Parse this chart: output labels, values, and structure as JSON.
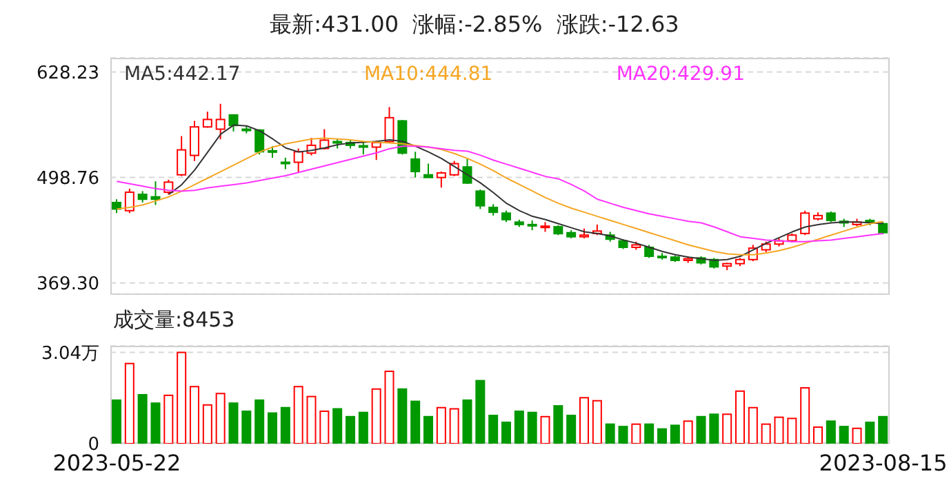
{
  "chart_data": [
    {
      "type": "candlestick",
      "title": "最新:431.00  涨幅:-2.85%  涨跌:-12.63",
      "categories": [
        null,
        null,
        null,
        null,
        null,
        null,
        null,
        null,
        null,
        null,
        null,
        null,
        null,
        null,
        null,
        null,
        null,
        null,
        null,
        null,
        null,
        null,
        null,
        null,
        null,
        null,
        null,
        null,
        null,
        null,
        null,
        null,
        null,
        null,
        null,
        null,
        null,
        null,
        null,
        null,
        null,
        null,
        null,
        null,
        null,
        null,
        null,
        null,
        null,
        null,
        null,
        null,
        null,
        null,
        null,
        null,
        null,
        null,
        null,
        null
      ],
      "ohlc": [
        [
          468,
          472,
          455,
          460
        ],
        [
          458,
          485,
          455,
          480.6
        ],
        [
          478,
          482,
          468,
          472
        ],
        [
          475,
          494,
          465,
          472
        ],
        [
          480.6,
          496,
          477.8,
          493
        ],
        [
          502,
          549.5,
          500.4,
          532.6
        ],
        [
          525.8,
          568.2,
          519,
          560.8
        ],
        [
          560.8,
          579.5,
          559.7,
          569.9
        ],
        [
          558,
          589.1,
          545.6,
          569.9
        ],
        [
          575.5,
          576,
          555.2,
          562.5
        ],
        [
          558,
          562.5,
          552.9,
          556.3
        ],
        [
          556.9,
          558,
          526.9,
          530.3
        ],
        [
          531.5,
          537.1,
          523,
          529.8
        ],
        [
          517.4,
          523,
          508.9,
          516.2
        ],
        [
          517.4,
          534.3,
          504.3,
          530.3
        ],
        [
          528.6,
          547.3,
          525.8,
          538.2
        ],
        [
          534.3,
          558,
          533.2,
          544.5
        ],
        [
          542.8,
          545.6,
          534.3,
          541.1
        ],
        [
          541.6,
          545.6,
          534.3,
          538.2
        ],
        [
          537.7,
          541.6,
          526.9,
          536
        ],
        [
          536,
          543.9,
          520.2,
          541.6
        ],
        [
          542.8,
          585.1,
          541.6,
          572.1
        ],
        [
          568.2,
          569.3,
          526.9,
          528.6
        ],
        [
          521.3,
          530.3,
          498.7,
          506
        ],
        [
          502,
          515.7,
          498.7,
          498.7
        ],
        [
          498.7,
          506,
          486.3,
          504.3
        ],
        [
          502,
          519,
          500.4,
          515.7
        ],
        [
          511.7,
          521.3,
          490.8,
          491.9
        ],
        [
          482,
          484,
          460,
          464
        ],
        [
          462,
          466,
          452,
          456
        ],
        [
          455,
          458,
          444,
          447
        ],
        [
          444,
          447,
          438,
          441
        ],
        [
          441,
          446,
          434,
          440
        ],
        [
          438,
          444,
          432,
          439
        ],
        [
          438.3,
          440,
          428,
          429.8
        ],
        [
          431,
          434,
          424,
          426
        ],
        [
          426,
          436,
          424,
          428
        ],
        [
          430,
          441,
          428,
          433
        ],
        [
          428,
          432,
          420,
          423
        ],
        [
          421,
          423,
          411,
          413
        ],
        [
          413,
          420,
          410,
          416
        ],
        [
          413,
          416,
          400,
          402
        ],
        [
          402,
          406,
          398,
          401
        ],
        [
          401,
          403,
          395,
          397
        ],
        [
          397,
          402,
          394,
          399
        ],
        [
          400,
          402,
          392,
          394
        ],
        [
          398,
          400,
          387,
          389
        ],
        [
          390,
          394,
          385,
          393
        ],
        [
          393,
          400,
          390,
          398
        ],
        [
          398,
          416,
          396,
          412
        ],
        [
          410,
          420,
          407,
          417
        ],
        [
          417,
          424,
          414,
          421
        ],
        [
          421,
          430,
          419,
          428
        ],
        [
          430,
          458,
          428,
          455
        ],
        [
          448,
          456,
          446,
          452
        ],
        [
          455,
          457,
          444,
          446
        ],
        [
          445,
          448,
          438,
          443
        ],
        [
          441,
          448,
          439,
          444
        ],
        [
          446,
          448,
          440,
          443.63
        ],
        [
          442,
          444,
          429,
          431
        ]
      ],
      "colors": [
        "#009900",
        "#ff0000",
        "#009900",
        "#009900",
        "#ff0000",
        "#ff0000",
        "#ff0000",
        "#ff0000",
        "#ff0000",
        "#009900",
        "#009900",
        "#009900",
        "#009900",
        "#009900",
        "#ff0000",
        "#ff0000",
        "#ff0000",
        "#009900",
        "#009900",
        "#009900",
        "#ff0000",
        "#ff0000",
        "#009900",
        "#009900",
        "#009900",
        "#ff0000",
        "#ff0000",
        "#009900",
        "#009900",
        "#009900",
        "#009900",
        "#009900",
        "#009900",
        "#ff0000",
        "#009900",
        "#009900",
        "#ff0000",
        "#ff0000",
        "#009900",
        "#009900",
        "#ff0000",
        "#009900",
        "#009900",
        "#009900",
        "#ff0000",
        "#009900",
        "#009900",
        "#ff0000",
        "#ff0000",
        "#ff0000",
        "#ff0000",
        "#ff0000",
        "#ff0000",
        "#ff0000",
        "#ff0000",
        "#009900",
        "#009900",
        "#ff0000",
        "#009900",
        "#009900"
      ],
      "series": [
        {
          "type": "line",
          "name": "MA5:442.17",
          "color": "#333333",
          "values": [
            null,
            null,
            null,
            null,
            478,
            490,
            508,
            530,
            552,
            563,
            562,
            556,
            546,
            535,
            530,
            532,
            535,
            539,
            541,
            542,
            543,
            545,
            543,
            537,
            530,
            522,
            512,
            502,
            492,
            480,
            467,
            458,
            451,
            447,
            442,
            437,
            432,
            430,
            427,
            422,
            418,
            413,
            408,
            404,
            401,
            399,
            397,
            398,
            402,
            410,
            418,
            425,
            432,
            438,
            441,
            443,
            444,
            444,
            443,
            442.17
          ]
        },
        {
          "type": "line",
          "name": "MA10:444.81",
          "color": "#f5a623",
          "values": [
            460,
            462,
            465,
            470,
            475,
            482,
            490,
            498,
            506,
            514,
            522,
            530,
            536,
            540,
            543,
            546,
            547,
            546,
            545,
            543,
            542,
            541,
            540,
            538,
            536,
            533,
            528,
            522,
            515,
            507,
            498,
            490,
            482,
            474,
            467,
            461,
            456,
            451,
            446,
            441,
            436,
            431,
            426,
            421,
            416,
            412,
            408,
            405,
            404,
            404,
            406,
            409,
            413,
            418,
            423,
            428,
            433,
            438,
            442,
            444.81
          ]
        },
        {
          "type": "line",
          "name": "MA20:429.91",
          "color": "#ff33ff",
          "values": [
            494,
            491,
            488,
            485,
            483,
            482,
            483,
            486,
            488,
            490,
            492,
            495,
            498,
            501,
            505,
            509,
            513,
            517,
            521,
            525,
            529,
            534,
            537,
            537,
            536,
            534,
            532,
            531,
            526,
            520,
            515,
            510,
            505,
            500,
            497,
            490,
            482,
            472,
            467,
            462,
            458,
            454,
            451,
            448,
            445,
            443,
            438,
            432,
            426,
            424,
            422,
            421,
            420,
            420,
            421,
            422,
            424,
            426,
            428,
            429.91
          ]
        }
      ],
      "ylim": [
        354.7,
        645.5
      ],
      "yticks": [
        628.23,
        498.76,
        {
          "value": 369.3,
          "label": "369.30"
        }
      ],
      "grid": "y",
      "legend": "top",
      "tick_labels": "y"
    },
    {
      "type": "bar",
      "title": "成交量:8453",
      "categories": [
        "2023-05-22",
        null,
        null,
        null,
        null,
        null,
        null,
        null,
        null,
        null,
        null,
        null,
        null,
        null,
        null,
        null,
        null,
        null,
        null,
        null,
        null,
        null,
        null,
        null,
        null,
        null,
        null,
        null,
        null,
        null,
        null,
        null,
        null,
        null,
        null,
        null,
        null,
        null,
        null,
        null,
        null,
        null,
        null,
        null,
        null,
        null,
        null,
        null,
        null,
        null,
        null,
        null,
        null,
        null,
        null,
        null,
        null,
        null,
        null,
        "2023-08-15"
      ],
      "values": [
        1.45,
        2.67,
        1.63,
        1.35,
        1.61,
        3.04,
        1.9,
        1.29,
        1.67,
        1.35,
        1.08,
        1.45,
        1.02,
        1.2,
        1.9,
        1.57,
        1.08,
        1.16,
        0.9,
        1.04,
        1.82,
        2.41,
        1.82,
        1.41,
        0.9,
        1.2,
        1.16,
        1.45,
        2.1,
        0.94,
        0.71,
        1.08,
        1.04,
        0.9,
        1.26,
        0.94,
        1.53,
        1.43,
        0.65,
        0.57,
        0.65,
        0.65,
        0.49,
        0.61,
        0.75,
        0.9,
        0.98,
        0.98,
        1.75,
        1.2,
        0.65,
        0.88,
        0.84,
        1.86,
        0.55,
        0.75,
        0.57,
        0.51,
        0.71,
        0.9
      ],
      "colors": [
        "#009900",
        "#ff0000",
        "#009900",
        "#009900",
        "#ff0000",
        "#ff0000",
        "#ff0000",
        "#ff0000",
        "#ff0000",
        "#009900",
        "#009900",
        "#009900",
        "#009900",
        "#009900",
        "#ff0000",
        "#ff0000",
        "#ff0000",
        "#009900",
        "#009900",
        "#009900",
        "#ff0000",
        "#ff0000",
        "#009900",
        "#009900",
        "#009900",
        "#ff0000",
        "#ff0000",
        "#009900",
        "#009900",
        "#009900",
        "#009900",
        "#009900",
        "#009900",
        "#ff0000",
        "#009900",
        "#009900",
        "#ff0000",
        "#ff0000",
        "#009900",
        "#009900",
        "#ff0000",
        "#009900",
        "#009900",
        "#009900",
        "#ff0000",
        "#009900",
        "#009900",
        "#ff0000",
        "#ff0000",
        "#ff0000",
        "#ff0000",
        "#ff0000",
        "#ff0000",
        "#ff0000",
        "#ff0000",
        "#009900",
        "#009900",
        "#ff0000",
        "#009900",
        "#009900"
      ],
      "ylim": [
        0,
        3.26
      ],
      "yticks": [
        0,
        {
          "value": 3.04,
          "label": "3.04万"
        }
      ],
      "grid": "y"
    }
  ]
}
